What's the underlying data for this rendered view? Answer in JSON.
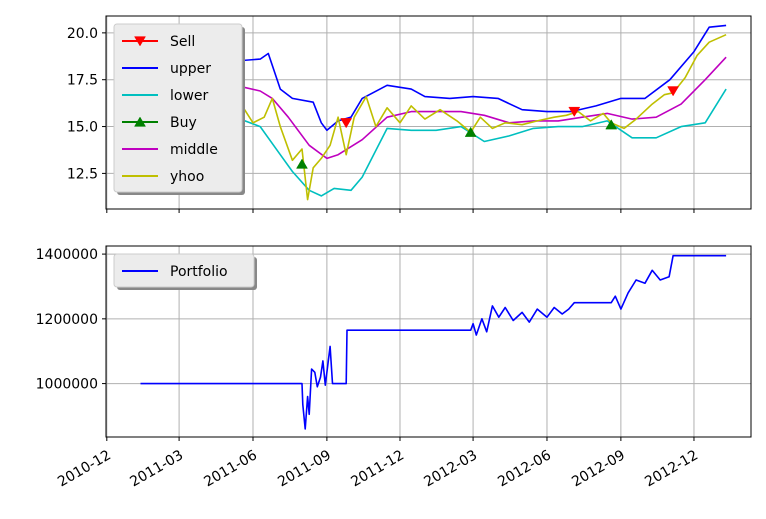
{
  "chart_data": [
    {
      "type": "line",
      "panel": "bollinger",
      "ylim": [
        10.6,
        20.9
      ],
      "y_ticks": [
        "12.5",
        "15.0",
        "17.5",
        "20.0"
      ],
      "y_tick_values": [
        12.5,
        15.0,
        17.5,
        20.0
      ],
      "grid": true,
      "legend_position": "upper-left",
      "legend": [
        "Sell",
        "upper",
        "lower",
        "Buy",
        "middle",
        "yhoo"
      ],
      "series": [
        {
          "name": "upper",
          "color": "#0000ff",
          "points": [
            [
              "2011-01-12",
              16.2
            ],
            [
              "2011-02-15",
              16.4
            ],
            [
              "2011-03-20",
              17.0
            ],
            [
              "2011-04-15",
              17.6
            ],
            [
              "2011-05-10",
              18.5
            ],
            [
              "2011-06-10",
              18.6
            ],
            [
              "2011-06-20",
              18.9
            ],
            [
              "2011-07-05",
              17.0
            ],
            [
              "2011-07-20",
              16.5
            ],
            [
              "2011-08-15",
              16.3
            ],
            [
              "2011-08-25",
              15.2
            ],
            [
              "2011-09-01",
              14.8
            ],
            [
              "2011-09-15",
              15.3
            ],
            [
              "2011-10-01",
              15.5
            ],
            [
              "2011-10-15",
              16.5
            ],
            [
              "2011-11-15",
              17.2
            ],
            [
              "2011-12-15",
              17.0
            ],
            [
              "2012-01-01",
              16.6
            ],
            [
              "2012-02-01",
              16.5
            ],
            [
              "2012-03-01",
              16.6
            ],
            [
              "2012-04-01",
              16.5
            ],
            [
              "2012-05-01",
              15.9
            ],
            [
              "2012-06-01",
              15.8
            ],
            [
              "2012-07-01",
              15.8
            ],
            [
              "2012-08-01",
              16.1
            ],
            [
              "2012-09-01",
              16.5
            ],
            [
              "2012-10-01",
              16.5
            ],
            [
              "2012-11-01",
              17.5
            ],
            [
              "2012-12-01",
              19.0
            ],
            [
              "2012-12-20",
              20.3
            ],
            [
              "2013-01-10",
              20.4
            ]
          ]
        },
        {
          "name": "lower",
          "color": "#00bfbf",
          "points": [
            [
              "2011-01-12",
              15.7
            ],
            [
              "2011-02-15",
              15.8
            ],
            [
              "2011-03-20",
              16.0
            ],
            [
              "2011-04-15",
              15.8
            ],
            [
              "2011-05-10",
              15.5
            ],
            [
              "2011-06-10",
              15.0
            ],
            [
              "2011-07-05",
              13.5
            ],
            [
              "2011-07-20",
              12.6
            ],
            [
              "2011-08-10",
              11.6
            ],
            [
              "2011-08-25",
              11.3
            ],
            [
              "2011-09-10",
              11.7
            ],
            [
              "2011-10-01",
              11.6
            ],
            [
              "2011-10-15",
              12.3
            ],
            [
              "2011-11-15",
              14.9
            ],
            [
              "2011-12-15",
              14.8
            ],
            [
              "2012-01-15",
              14.8
            ],
            [
              "2012-02-15",
              15.0
            ],
            [
              "2012-03-15",
              14.2
            ],
            [
              "2012-04-15",
              14.5
            ],
            [
              "2012-05-15",
              14.9
            ],
            [
              "2012-06-15",
              15.0
            ],
            [
              "2012-07-15",
              15.0
            ],
            [
              "2012-08-15",
              15.3
            ],
            [
              "2012-09-15",
              14.4
            ],
            [
              "2012-10-15",
              14.4
            ],
            [
              "2012-11-15",
              15.0
            ],
            [
              "2012-12-15",
              15.2
            ],
            [
              "2013-01-10",
              17.0
            ]
          ]
        },
        {
          "name": "middle",
          "color": "#bf00bf",
          "points": [
            [
              "2011-01-12",
              15.9
            ],
            [
              "2011-02-15",
              16.1
            ],
            [
              "2011-03-20",
              16.6
            ],
            [
              "2011-04-15",
              16.9
            ],
            [
              "2011-05-10",
              17.2
            ],
            [
              "2011-06-10",
              16.9
            ],
            [
              "2011-06-25",
              16.5
            ],
            [
              "2011-07-15",
              15.5
            ],
            [
              "2011-08-10",
              14.0
            ],
            [
              "2011-09-01",
              13.3
            ],
            [
              "2011-09-15",
              13.5
            ],
            [
              "2011-10-15",
              14.3
            ],
            [
              "2011-11-15",
              15.5
            ],
            [
              "2011-12-15",
              15.8
            ],
            [
              "2012-01-15",
              15.8
            ],
            [
              "2012-02-15",
              15.8
            ],
            [
              "2012-03-15",
              15.6
            ],
            [
              "2012-04-15",
              15.2
            ],
            [
              "2012-05-15",
              15.3
            ],
            [
              "2012-06-15",
              15.3
            ],
            [
              "2012-07-15",
              15.5
            ],
            [
              "2012-08-15",
              15.7
            ],
            [
              "2012-09-15",
              15.4
            ],
            [
              "2012-10-15",
              15.5
            ],
            [
              "2012-11-15",
              16.2
            ],
            [
              "2012-12-15",
              17.5
            ],
            [
              "2013-01-10",
              18.7
            ]
          ]
        },
        {
          "name": "yhoo",
          "color": "#bfbf00",
          "points": [
            [
              "2011-01-12",
              16.3
            ],
            [
              "2011-02-01",
              16.0
            ],
            [
              "2011-02-20",
              17.0
            ],
            [
              "2011-03-10",
              16.5
            ],
            [
              "2011-04-01",
              17.6
            ],
            [
              "2011-04-20",
              17.2
            ],
            [
              "2011-05-05",
              18.5
            ],
            [
              "2011-05-20",
              16.0
            ],
            [
              "2011-06-01",
              15.2
            ],
            [
              "2011-06-15",
              15.5
            ],
            [
              "2011-06-25",
              16.5
            ],
            [
              "2011-07-05",
              15.0
            ],
            [
              "2011-07-20",
              13.2
            ],
            [
              "2011-08-01",
              13.8
            ],
            [
              "2011-08-08",
              11.1
            ],
            [
              "2011-08-15",
              12.8
            ],
            [
              "2011-08-25",
              13.3
            ],
            [
              "2011-09-05",
              14.0
            ],
            [
              "2011-09-15",
              15.5
            ],
            [
              "2011-09-25",
              13.5
            ],
            [
              "2011-10-05",
              15.5
            ],
            [
              "2011-10-20",
              16.6
            ],
            [
              "2011-11-01",
              15.0
            ],
            [
              "2011-11-15",
              16.0
            ],
            [
              "2011-12-01",
              15.2
            ],
            [
              "2011-12-15",
              16.1
            ],
            [
              "2012-01-01",
              15.4
            ],
            [
              "2012-01-20",
              15.9
            ],
            [
              "2012-02-10",
              15.3
            ],
            [
              "2012-02-27",
              14.7
            ],
            [
              "2012-03-10",
              15.5
            ],
            [
              "2012-03-25",
              14.9
            ],
            [
              "2012-04-10",
              15.2
            ],
            [
              "2012-05-01",
              15.1
            ],
            [
              "2012-05-20",
              15.3
            ],
            [
              "2012-06-10",
              15.5
            ],
            [
              "2012-06-25",
              15.6
            ],
            [
              "2012-07-10",
              15.8
            ],
            [
              "2012-07-25",
              15.3
            ],
            [
              "2012-08-10",
              15.7
            ],
            [
              "2012-08-20",
              15.2
            ],
            [
              "2012-09-05",
              14.9
            ],
            [
              "2012-09-20",
              15.4
            ],
            [
              "2012-10-10",
              16.2
            ],
            [
              "2012-10-25",
              16.7
            ],
            [
              "2012-11-05",
              16.8
            ],
            [
              "2012-11-20",
              17.6
            ],
            [
              "2012-12-05",
              18.8
            ],
            [
              "2012-12-20",
              19.5
            ],
            [
              "2013-01-10",
              19.9
            ]
          ]
        }
      ],
      "markers": [
        {
          "name": "Sell",
          "color": "#ff0000",
          "shape": "triangle-down",
          "points": [
            [
              "2011-09-25",
              15.2
            ],
            [
              "2012-07-05",
              15.8
            ],
            [
              "2012-11-05",
              16.9
            ]
          ]
        },
        {
          "name": "Buy",
          "color": "#008000",
          "shape": "triangle-up",
          "points": [
            [
              "2011-08-01",
              13.0
            ],
            [
              "2012-02-27",
              14.7
            ],
            [
              "2012-08-20",
              15.1
            ]
          ]
        }
      ]
    },
    {
      "type": "line",
      "panel": "portfolio",
      "ylim": [
        835000,
        1425000
      ],
      "y_ticks": [
        "1000000",
        "1200000",
        "1400000"
      ],
      "y_tick_values": [
        1000000,
        1200000,
        1400000
      ],
      "grid": true,
      "legend_position": "upper-left",
      "legend": [
        "Portfolio"
      ],
      "series": [
        {
          "name": "Portfolio",
          "color": "#0000ff",
          "points": [
            [
              "2011-01-12",
              1000000
            ],
            [
              "2011-08-01",
              1000000
            ],
            [
              "2011-08-02",
              935000
            ],
            [
              "2011-08-05",
              860000
            ],
            [
              "2011-08-08",
              960000
            ],
            [
              "2011-08-10",
              905000
            ],
            [
              "2011-08-13",
              1045000
            ],
            [
              "2011-08-17",
              1035000
            ],
            [
              "2011-08-20",
              990000
            ],
            [
              "2011-08-24",
              1020000
            ],
            [
              "2011-08-27",
              1070000
            ],
            [
              "2011-08-30",
              995000
            ],
            [
              "2011-09-05",
              1115000
            ],
            [
              "2011-09-08",
              1000000
            ],
            [
              "2011-09-10",
              1000000
            ],
            [
              "2011-09-25",
              1000000
            ],
            [
              "2011-09-26",
              1165000
            ],
            [
              "2012-02-27",
              1165000
            ],
            [
              "2012-03-01",
              1185000
            ],
            [
              "2012-03-05",
              1150000
            ],
            [
              "2012-03-12",
              1200000
            ],
            [
              "2012-03-18",
              1160000
            ],
            [
              "2012-03-25",
              1240000
            ],
            [
              "2012-04-02",
              1205000
            ],
            [
              "2012-04-10",
              1235000
            ],
            [
              "2012-04-20",
              1195000
            ],
            [
              "2012-05-01",
              1220000
            ],
            [
              "2012-05-10",
              1190000
            ],
            [
              "2012-05-20",
              1230000
            ],
            [
              "2012-06-01",
              1205000
            ],
            [
              "2012-06-10",
              1235000
            ],
            [
              "2012-06-20",
              1215000
            ],
            [
              "2012-06-28",
              1230000
            ],
            [
              "2012-07-05",
              1250000
            ],
            [
              "2012-08-20",
              1250000
            ],
            [
              "2012-08-25",
              1270000
            ],
            [
              "2012-09-01",
              1230000
            ],
            [
              "2012-09-10",
              1280000
            ],
            [
              "2012-09-20",
              1320000
            ],
            [
              "2012-10-01",
              1310000
            ],
            [
              "2012-10-10",
              1350000
            ],
            [
              "2012-10-20",
              1320000
            ],
            [
              "2012-10-31",
              1330000
            ],
            [
              "2012-11-05",
              1395000
            ],
            [
              "2013-01-10",
              1395000
            ]
          ]
        }
      ]
    }
  ],
  "shared_x": {
    "domain": [
      "2010-11-30",
      "2013-02-10"
    ],
    "ticks": [
      {
        "value": "2010-12-01",
        "label": "2010-12"
      },
      {
        "value": "2011-03-01",
        "label": "2011-03"
      },
      {
        "value": "2011-06-01",
        "label": "2011-06"
      },
      {
        "value": "2011-09-01",
        "label": "2011-09"
      },
      {
        "value": "2011-12-01",
        "label": "2011-12"
      },
      {
        "value": "2012-03-01",
        "label": "2012-03"
      },
      {
        "value": "2012-06-01",
        "label": "2012-06"
      },
      {
        "value": "2012-09-01",
        "label": "2012-09"
      },
      {
        "value": "2012-12-01",
        "label": "2012-12"
      }
    ]
  }
}
